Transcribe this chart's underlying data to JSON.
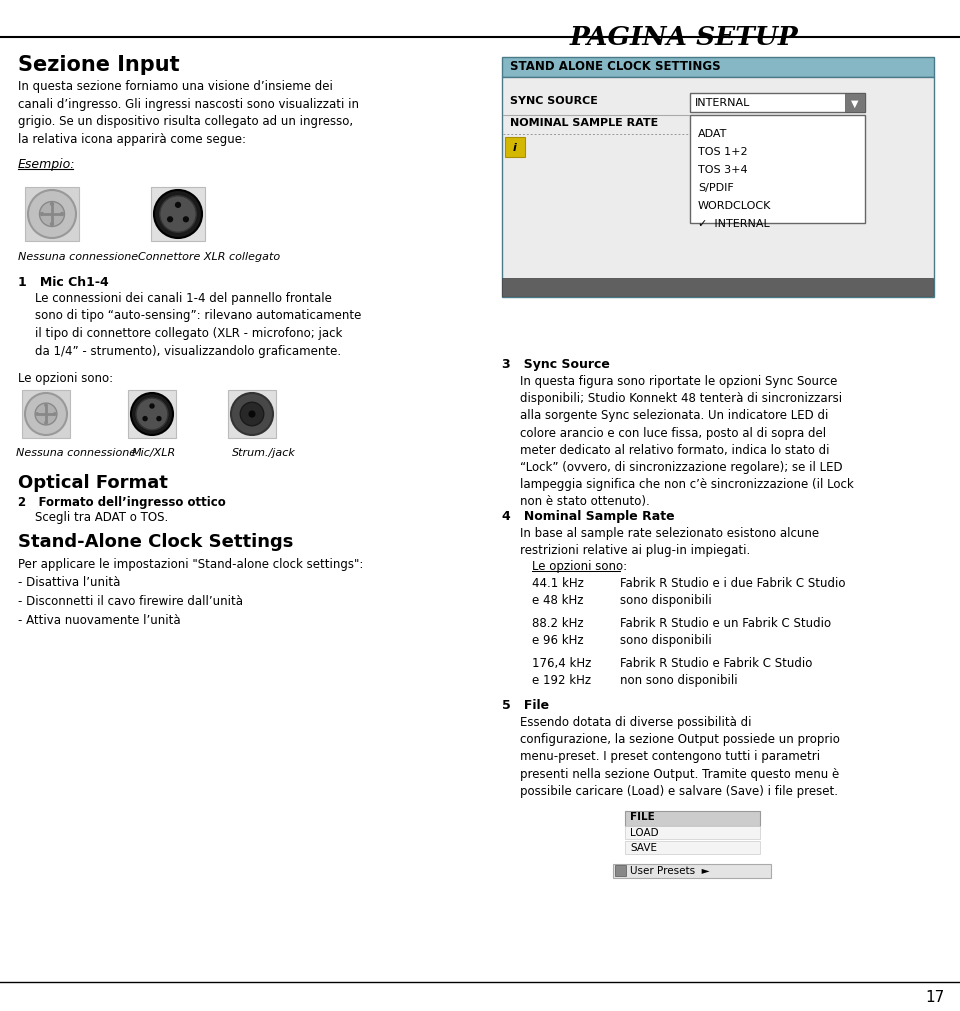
{
  "page_title": "PAGINA SETUP",
  "page_number": "17",
  "bg_color": "#ffffff",
  "left_col": {
    "section_title": "Sezione Input",
    "section_body": "In questa sezione forniamo una visione d’insieme dei\ncanali d’ingresso. Gli ingressi nascosti sono visualizzati in\ngrigio. Se un dispositivo risulta collegato ad un ingresso,\nla relativa icona apparirà come segue:",
    "esempio_label": "Esempio:",
    "icon1_label": "Nessuna connessione",
    "icon2_label": "Connettore XLR collegato",
    "item1_title": "1   Mic Ch1-4",
    "item1_body": "Le connessioni dei canali 1-4 del pannello frontale\nsono di tipo “auto-sensing”: rilevano automaticamente\nil tipo di connettore collegato (XLR - microfono; jack\nda 1/4” - strumento), visualizzandolo graficamente.",
    "options_label": "Le opzioni sono:",
    "icon3_label": "Nessuna connessione",
    "icon4_label": "Mic/XLR",
    "icon5_label": "Strum./jack",
    "optical_title": "Optical Format",
    "item2_title": "2   Formato dell’ingresso ottico",
    "item2_body": "Scegli tra ADAT o TOS.",
    "standalone_title": "Stand-Alone Clock Settings",
    "standalone_body": "Per applicare le impostazioni \"Stand-alone clock settings\":\n- Disattiva l’unità\n- Disconnetti il cavo firewire dall’unità\n- Attiva nuovamente l’unità"
  },
  "right_col": {
    "ui_title": "STAND ALONE CLOCK SETTINGS",
    "ui_row1_label": "SYNC SOURCE",
    "ui_row1_value": "INTERNAL",
    "ui_row2_label": "NOMINAL SAMPLE RATE",
    "ui_dropdown": [
      "ADAT",
      "TOS 1+2",
      "TOS 3+4",
      "S/PDIF",
      "WORDCLOCK",
      "✓  INTERNAL"
    ],
    "item3_title": "3   Sync Source",
    "item3_body": "In questa figura sono riportate le opzioni Sync Source\ndisponibili; Studio Konnekt 48 tenterà di sincronizzarsi\nalla sorgente Sync selezionata. Un indicatore LED di\ncolore arancio e con luce fissa, posto al di sopra del\nmeter dedicato al relativo formato, indica lo stato di\n“Lock” (ovvero, di sincronizzazione regolare); se il LED\nlampeggia significa che non c’è sincronizzazione (il Lock\nnon è stato ottenuto).",
    "item4_title": "4   Nominal Sample Rate",
    "item4_body": "In base al sample rate selezionato esistono alcune\nrestrizioni relative ai plug-in impiegati.",
    "options_underline": "Le opzioni sono:",
    "rate_table": [
      {
        "khz": "44.1 kHz\ne 48 kHz",
        "desc": "Fabrik R Studio e i due Fabrik C Studio\nsono disponibili"
      },
      {
        "khz": "88.2 kHz\ne 96 kHz",
        "desc": "Fabrik R Studio e un Fabrik C Studio\nsono disponibili"
      },
      {
        "khz": "176,4 kHz\ne 192 kHz",
        "desc": "Fabrik R Studio e Fabrik C Studio\nnon sono disponibili"
      }
    ],
    "item5_title": "5   File",
    "item5_body": "Essendo dotata di diverse possibilità di\nconfigurazione, la sezione Output possiede un proprio\nmenu-preset. I preset contengono tutti i parametri\npresenti nella sezione Output. Tramite questo menu è\npossibile caricare (Load) e salvare (Save) i file preset.",
    "file_ui": [
      "FILE",
      "LOAD",
      "SAVE"
    ],
    "user_presets": "User Presets  ►"
  }
}
